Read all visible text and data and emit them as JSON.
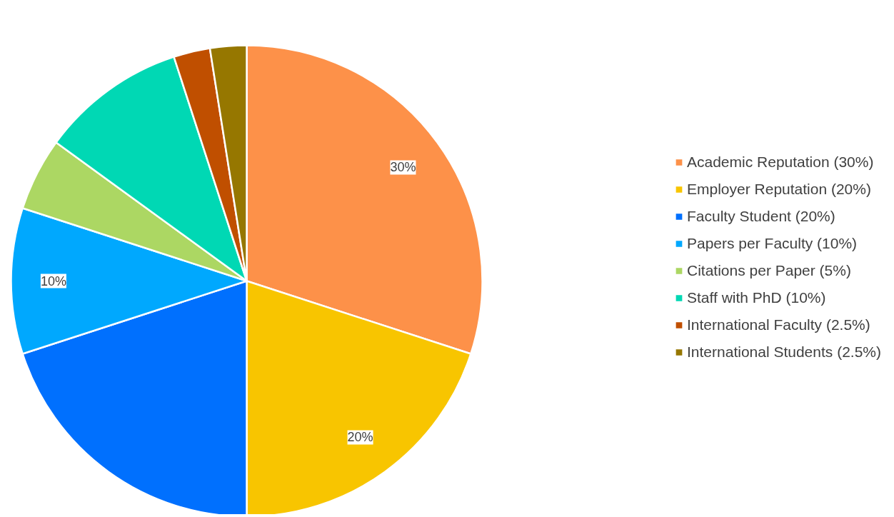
{
  "chart_data": {
    "type": "pie",
    "categories": [
      "Academic Reputation (30%)",
      "Employer Reputation (20%)",
      "Faculty Student (20%)",
      "Papers per Faculty (10%)",
      "Citations per Paper (5%)",
      "Staff with PhD (10%)",
      "International Faculty (2.5%)",
      "International Students (2.5%)"
    ],
    "values": [
      30,
      20,
      20,
      10,
      5,
      10,
      2.5,
      2.5
    ],
    "colors": [
      "#fd9149",
      "#f8c500",
      "#0070fe",
      "#00a8fe",
      "#acd763",
      "#00d8b4",
      "#c04f00",
      "#967700"
    ],
    "value_labels": [
      "30%",
      "20%",
      null,
      "10%",
      null,
      null,
      null,
      null
    ],
    "legend": "right"
  }
}
